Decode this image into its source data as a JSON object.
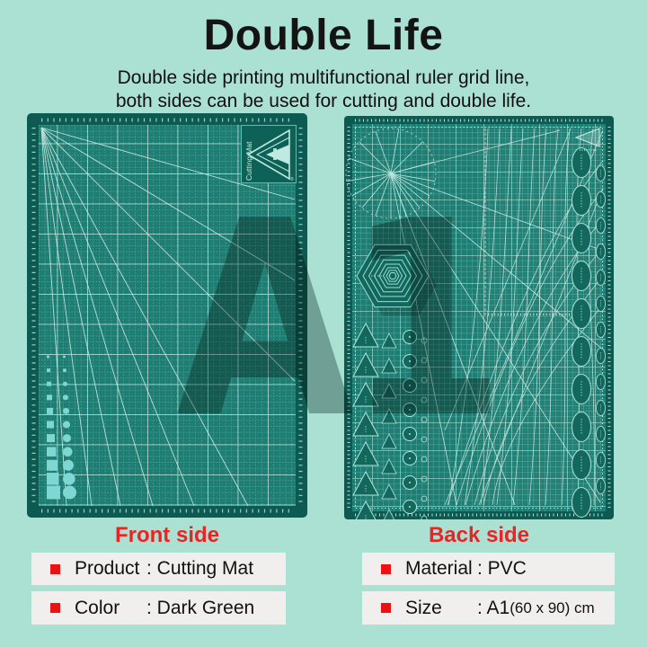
{
  "header": {
    "title": "Double Life",
    "subtitle_line1": "Double side printing multifunctional ruler grid line,",
    "subtitle_line2": "both sides can be used for cutting and double life."
  },
  "watermark": {
    "text": "A1"
  },
  "mats": {
    "front": {
      "label": "Front side",
      "logo_text": "Cutting Mat"
    },
    "back": {
      "label": "Back side"
    }
  },
  "info": {
    "items": [
      {
        "label": "Product",
        "value": ": Cutting Mat"
      },
      {
        "label": "Color",
        "value": ": Dark Green"
      },
      {
        "label": "Material",
        "value": ": PVC"
      },
      {
        "label": "Size",
        "value": ": A1",
        "value_suffix": " (60 x 90) cm"
      }
    ]
  },
  "colors": {
    "background": "#abe1d3",
    "mat_surface": "#1f7e73",
    "mat_border": "#0c5a51",
    "grid_line": "#9ad8cd",
    "accent_red": "#ee2123",
    "info_bar_bg": "#f0efed",
    "bullet_red": "#ee1111",
    "text_black": "#121212",
    "watermark_shadow": "#0a362f",
    "shape_fill": "#7ed7d3"
  }
}
